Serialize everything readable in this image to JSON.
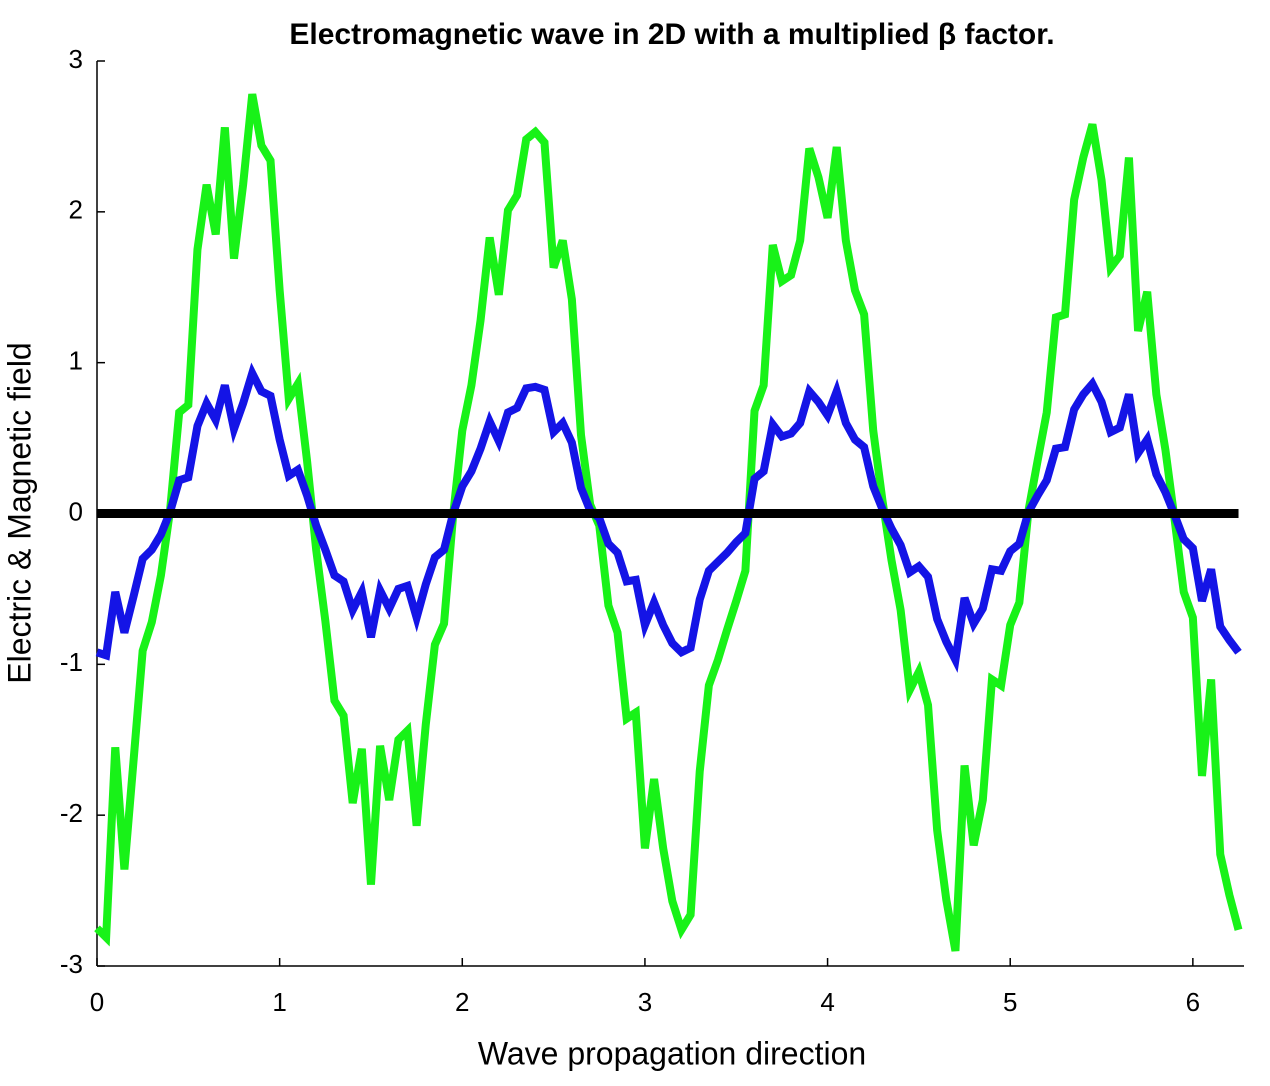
{
  "chart_data": {
    "type": "line",
    "title": "Electromagnetic wave in 2D with a multiplied β factor.",
    "xlabel": "Wave propagation direction",
    "ylabel": "Electric & Magnetic field",
    "x": [
      0,
      0.05,
      0.1,
      0.15,
      0.2,
      0.25,
      0.3,
      0.35,
      0.4,
      0.45,
      0.5,
      0.55,
      0.6,
      0.65,
      0.7,
      0.75,
      0.8,
      0.85,
      0.9,
      0.95,
      1,
      1.05,
      1.1,
      1.15,
      1.2,
      1.25,
      1.3,
      1.35,
      1.4,
      1.45,
      1.5,
      1.55,
      1.6,
      1.65,
      1.7,
      1.75,
      1.8,
      1.85,
      1.9,
      1.95,
      2,
      2.05,
      2.1,
      2.15,
      2.2,
      2.25,
      2.3,
      2.35,
      2.4,
      2.45,
      2.5,
      2.55,
      2.6,
      2.65,
      2.7,
      2.75,
      2.8,
      2.85,
      2.9,
      2.95,
      3,
      3.05,
      3.1,
      3.15,
      3.2,
      3.25,
      3.3,
      3.35,
      3.4,
      3.45,
      3.5,
      3.55,
      3.6,
      3.65,
      3.7,
      3.75,
      3.8,
      3.85,
      3.9,
      3.95,
      4,
      4.05,
      4.1,
      4.15,
      4.2,
      4.25,
      4.3,
      4.35,
      4.4,
      4.45,
      4.5,
      4.55,
      4.6,
      4.65,
      4.7,
      4.75,
      4.8,
      4.85,
      4.9,
      4.95,
      5,
      5.05,
      5.1,
      5.15,
      5.2,
      5.25,
      5.3,
      5.35,
      5.4,
      5.45,
      5.5,
      5.55,
      5.6,
      5.65,
      5.7,
      5.75,
      5.8,
      5.85,
      5.9,
      5.95,
      6,
      6.05,
      6.1,
      6.15,
      6.2,
      6.25
    ],
    "series": [
      {
        "color": "#18f218",
        "values": [
          -2.75,
          -2.81,
          -1.55,
          -2.36,
          -1.64,
          -0.91,
          -0.72,
          -0.41,
          0.02,
          0.67,
          0.72,
          1.75,
          2.18,
          1.85,
          2.56,
          1.69,
          2.18,
          2.78,
          2.44,
          2.34,
          1.48,
          0.76,
          0.86,
          0.35,
          -0.24,
          -0.71,
          -1.24,
          -1.34,
          -1.92,
          -1.56,
          -2.46,
          -1.54,
          -1.9,
          -1.5,
          -1.44,
          -2.07,
          -1.4,
          -0.87,
          -0.73,
          -0.01,
          0.55,
          0.85,
          1.28,
          1.83,
          1.45,
          2.01,
          2.11,
          2.48,
          2.53,
          2.46,
          1.63,
          1.81,
          1.42,
          0.52,
          0.06,
          -0.08,
          -0.61,
          -0.79,
          -1.36,
          -1.32,
          -2.22,
          -1.76,
          -2.22,
          -2.57,
          -2.76,
          -2.66,
          -1.71,
          -1.14,
          -0.97,
          -0.77,
          -0.58,
          -0.38,
          0.68,
          0.85,
          1.78,
          1.54,
          1.58,
          1.81,
          2.42,
          2.23,
          1.96,
          2.43,
          1.81,
          1.48,
          1.32,
          0.55,
          0.09,
          -0.31,
          -0.64,
          -1.17,
          -1.05,
          -1.27,
          -2.1,
          -2.56,
          -2.9,
          -1.67,
          -2.2,
          -1.9,
          -1.1,
          -1.14,
          -0.74,
          -0.59,
          0.02,
          0.35,
          0.67,
          1.3,
          1.32,
          2.08,
          2.36,
          2.58,
          2.21,
          1.63,
          1.71,
          2.36,
          1.21,
          1.47,
          0.79,
          0.42,
          -0.04,
          -0.52,
          -0.69,
          -1.74,
          -1.1,
          -2.26,
          -2.53,
          -2.76
        ]
      },
      {
        "color": "#1414e6",
        "values": [
          -0.92,
          -0.94,
          -0.52,
          -0.79,
          -0.55,
          -0.3,
          -0.24,
          -0.14,
          0.01,
          0.22,
          0.24,
          0.58,
          0.73,
          0.62,
          0.85,
          0.56,
          0.73,
          0.93,
          0.81,
          0.78,
          0.49,
          0.25,
          0.29,
          0.12,
          -0.08,
          -0.24,
          -0.41,
          -0.45,
          -0.64,
          -0.52,
          -0.82,
          -0.51,
          -0.63,
          -0.5,
          -0.48,
          -0.69,
          -0.47,
          -0.29,
          -0.24,
          0,
          0.18,
          0.28,
          0.43,
          0.61,
          0.48,
          0.67,
          0.7,
          0.83,
          0.84,
          0.82,
          0.54,
          0.6,
          0.47,
          0.17,
          0.02,
          -0.03,
          -0.2,
          -0.26,
          -0.45,
          -0.44,
          -0.74,
          -0.59,
          -0.74,
          -0.86,
          -0.92,
          -0.89,
          -0.57,
          -0.38,
          -0.32,
          -0.26,
          -0.19,
          -0.13,
          0.23,
          0.28,
          0.59,
          0.51,
          0.53,
          0.6,
          0.81,
          0.74,
          0.65,
          0.81,
          0.6,
          0.49,
          0.44,
          0.18,
          0.03,
          -0.1,
          -0.21,
          -0.39,
          -0.35,
          -0.42,
          -0.7,
          -0.85,
          -0.97,
          -0.56,
          -0.73,
          -0.63,
          -0.37,
          -0.38,
          -0.25,
          -0.2,
          0.01,
          0.12,
          0.22,
          0.43,
          0.44,
          0.69,
          0.79,
          0.86,
          0.74,
          0.54,
          0.57,
          0.79,
          0.4,
          0.49,
          0.26,
          0.14,
          -0.01,
          -0.17,
          -0.23,
          -0.58,
          -0.37,
          -0.75,
          -0.84,
          -0.92
        ]
      },
      {
        "color": "#000000",
        "x": [
          0,
          6.25
        ],
        "values": [
          0,
          0
        ]
      }
    ],
    "xlim": [
      0,
      6.28
    ],
    "xticks": [
      0,
      1,
      2,
      3,
      4,
      5,
      6
    ],
    "ylim": [
      -3,
      3
    ],
    "yticks": [
      -3,
      -2,
      -1,
      0,
      1,
      2,
      3
    ]
  }
}
